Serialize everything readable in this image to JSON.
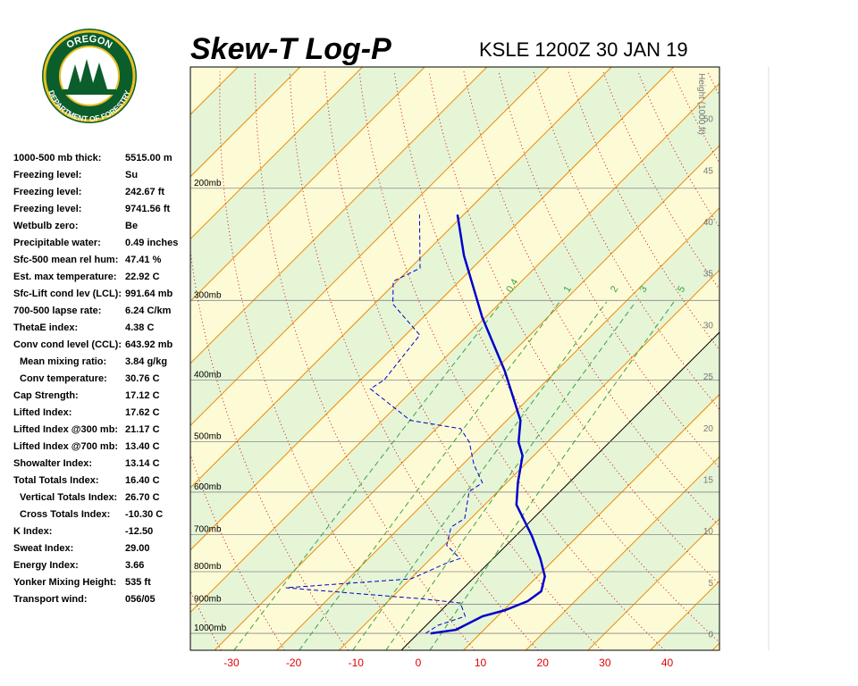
{
  "logo": {
    "top": "OREGON",
    "bottom": "DEPARTMENT OF FORESTRY"
  },
  "indices": [
    {
      "label": "1000-500 mb thick:",
      "value": "5515.00 m"
    },
    {
      "label": "Freezing level:",
      "value": "Su"
    },
    {
      "label": "Freezing level:",
      "value": "242.67 ft"
    },
    {
      "label": "Freezing level:",
      "value": "9741.56 ft"
    },
    {
      "label": "Wetbulb zero:",
      "value": "Be"
    },
    {
      "label": "Precipitable water:",
      "value": "0.49 inches"
    },
    {
      "label": "Sfc-500 mean rel hum:",
      "value": "47.41 %"
    },
    {
      "label": "Est. max temperature:",
      "value": "22.92 C"
    },
    {
      "label": "Sfc-Lift cond lev (LCL):",
      "value": "991.64 mb"
    },
    {
      "label": "700-500 lapse rate:",
      "value": "6.24 C/km"
    },
    {
      "label": "ThetaE index:",
      "value": "4.38 C"
    },
    {
      "label": "Conv cond level (CCL):",
      "value": "643.92 mb"
    },
    {
      "label": "Mean mixing ratio:",
      "value": "3.84 g/kg"
    },
    {
      "label": "Conv temperature:",
      "value": "30.76 C"
    },
    {
      "label": "Cap Strength:",
      "value": "17.12 C"
    },
    {
      "label": "Lifted Index:",
      "value": "17.62 C"
    },
    {
      "label": "Lifted Index @300 mb:",
      "value": "21.17 C"
    },
    {
      "label": "Lifted Index @700 mb:",
      "value": "13.40 C"
    },
    {
      "label": "Showalter Index:",
      "value": "13.14 C"
    },
    {
      "label": "Total Totals Index:",
      "value": "16.40 C"
    },
    {
      "label": "Vertical Totals Index:",
      "value": "26.70 C"
    },
    {
      "label": "Cross Totals Index:",
      "value": "-10.30 C"
    },
    {
      "label": "K Index:",
      "value": "-12.50"
    },
    {
      "label": "Sweat Index:",
      "value": "29.00"
    },
    {
      "label": "Energy Index:",
      "value": "3.66"
    },
    {
      "label": "Yonker Mixing Height:",
      "value": "535 ft"
    },
    {
      "label": "Transport wind:",
      "value": "056/05"
    }
  ],
  "chart_data": {
    "type": "skew-t",
    "title": "Skew-T Log-P",
    "subtitle": "KSLE 1200Z 30 JAN 19",
    "xlim": [
      -36.6,
      48.4
    ],
    "xticks": [
      -30,
      -20,
      -10,
      0,
      10,
      20,
      30,
      40
    ],
    "ylim": [
      1063,
      129
    ],
    "log_y": true,
    "yticks": [
      {
        "value": 1000,
        "label": "1000mb"
      },
      {
        "value": 900,
        "label": "900mb"
      },
      {
        "value": 800,
        "label": "800mb"
      },
      {
        "value": 700,
        "label": "700mb"
      },
      {
        "value": 600,
        "label": "600mb"
      },
      {
        "value": 500,
        "label": "500mb"
      },
      {
        "value": 400,
        "label": "400mb"
      },
      {
        "value": 300,
        "label": "300mb"
      },
      {
        "value": 200,
        "label": "200mb"
      }
    ],
    "y2label": "Height (1000 ft)",
    "y2lim": [
      -1.6,
      55
    ],
    "y2ticks": [
      0,
      5,
      10,
      15,
      20,
      25,
      30,
      35,
      40,
      45,
      50
    ],
    "mixing_ratios": [
      0.4,
      1,
      2,
      3,
      5
    ],
    "series": [
      {
        "color": "#0000cc",
        "style": "solid",
        "pressure": [
          1000,
          987,
          940,
          920,
          890,
          859,
          814,
          763,
          703,
          628,
          580,
          526,
          501,
          463,
          387,
          319,
          255,
          220
        ],
        "values": [
          2,
          5.5,
          7.6,
          10.2,
          12.4,
          13,
          11.2,
          7.6,
          2.6,
          -4.9,
          -8.2,
          -11.8,
          -14.6,
          -17.8,
          -28.3,
          -40.5,
          -53.4,
          -61
        ]
      },
      {
        "color": "#0000cc",
        "style": "dashed",
        "pressure": [
          1000,
          971,
          940,
          896,
          882,
          848,
          821,
          775,
          763,
          727,
          681,
          660,
          599,
          580,
          543,
          501,
          477,
          463,
          413,
          400,
          340,
          304,
          280,
          267,
          220
        ],
        "values": [
          1.2,
          1.9,
          4.8,
          1.9,
          -5.3,
          -28.6,
          -9.9,
          -6.7,
          -5.3,
          -9.6,
          -11.8,
          -11,
          -14.6,
          -13.9,
          -18.2,
          -22.5,
          -26.1,
          -35.5,
          -47,
          -46.2,
          -47.7,
          -57,
          -60.6,
          -58.4,
          -67.1
        ]
      }
    ]
  }
}
